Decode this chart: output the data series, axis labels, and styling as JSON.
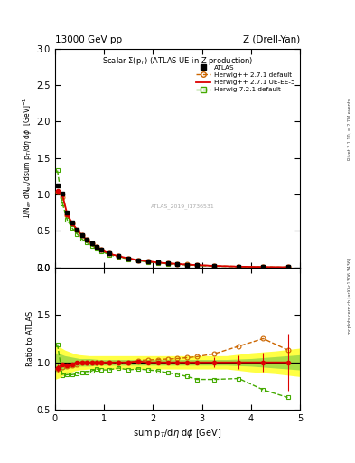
{
  "title_left": "13000 GeV pp",
  "title_right": "Z (Drell-Yan)",
  "panel_title": "Scalar $\\Sigma$(p$_T$) (ATLAS UE in Z production)",
  "ylabel_main": "1/N$_{ev}$ dN$_{ev}$/dsum p$_T$/d$\\eta$ d$\\phi$  [GeV]$^{-1}$",
  "ylabel_ratio": "Ratio to ATLAS",
  "xlabel": "sum p$_T$/d$\\eta$ d$\\phi$ [GeV]",
  "watermark": "ATLAS_2019_I1736531",
  "side_text_top": "Rivet 3.1.10, ≥ 2.7M events",
  "side_text_bot": "mcplots.cern.ch [arXiv:1306.3436]",
  "atlas_data_x": [
    0.05,
    0.15,
    0.25,
    0.35,
    0.45,
    0.55,
    0.65,
    0.75,
    0.85,
    0.95,
    1.1,
    1.3,
    1.5,
    1.7,
    1.9,
    2.1,
    2.3,
    2.5,
    2.7,
    2.9,
    3.25,
    3.75,
    4.25,
    4.75
  ],
  "atlas_data_y": [
    1.12,
    1.02,
    0.75,
    0.62,
    0.52,
    0.44,
    0.38,
    0.33,
    0.28,
    0.24,
    0.19,
    0.155,
    0.125,
    0.1,
    0.083,
    0.068,
    0.057,
    0.048,
    0.04,
    0.033,
    0.022,
    0.012,
    0.007,
    0.004
  ],
  "atlas_data_yerr": [
    0.02,
    0.015,
    0.01,
    0.008,
    0.007,
    0.006,
    0.005,
    0.004,
    0.004,
    0.003,
    0.003,
    0.002,
    0.002,
    0.002,
    0.0015,
    0.001,
    0.001,
    0.001,
    0.0008,
    0.0007,
    0.0005,
    0.0003,
    0.0002,
    0.0001
  ],
  "herwig_default_x": [
    0.05,
    0.15,
    0.25,
    0.35,
    0.45,
    0.55,
    0.65,
    0.75,
    0.85,
    0.95,
    1.1,
    1.3,
    1.5,
    1.7,
    1.9,
    2.1,
    2.3,
    2.5,
    2.7,
    2.9,
    3.25,
    3.75,
    4.25,
    4.75
  ],
  "herwig_default_y": [
    1.04,
    0.97,
    0.72,
    0.6,
    0.51,
    0.44,
    0.38,
    0.33,
    0.28,
    0.24,
    0.19,
    0.155,
    0.125,
    0.102,
    0.085,
    0.07,
    0.059,
    0.05,
    0.042,
    0.035,
    0.024,
    0.014,
    0.008,
    0.0045
  ],
  "herwig_ueee5_x": [
    0.05,
    0.15,
    0.25,
    0.35,
    0.45,
    0.55,
    0.65,
    0.75,
    0.85,
    0.95,
    1.1,
    1.3,
    1.5,
    1.7,
    1.9,
    2.1,
    2.3,
    2.5,
    2.7,
    2.9,
    3.25,
    3.75,
    4.25,
    4.75
  ],
  "herwig_ueee5_y": [
    1.05,
    1.0,
    0.73,
    0.61,
    0.52,
    0.44,
    0.38,
    0.33,
    0.28,
    0.24,
    0.19,
    0.155,
    0.125,
    0.101,
    0.083,
    0.068,
    0.057,
    0.048,
    0.04,
    0.033,
    0.022,
    0.012,
    0.007,
    0.004
  ],
  "herwig721_x": [
    0.05,
    0.15,
    0.25,
    0.35,
    0.45,
    0.55,
    0.65,
    0.75,
    0.85,
    0.95,
    1.1,
    1.3,
    1.5,
    1.7,
    1.9,
    2.1,
    2.3,
    2.5,
    2.7,
    2.9,
    3.25,
    3.75,
    4.25,
    4.75
  ],
  "herwig721_y": [
    1.33,
    0.88,
    0.65,
    0.54,
    0.46,
    0.39,
    0.34,
    0.3,
    0.26,
    0.22,
    0.175,
    0.145,
    0.115,
    0.093,
    0.076,
    0.062,
    0.051,
    0.042,
    0.034,
    0.027,
    0.018,
    0.01,
    0.005,
    0.0025
  ],
  "ratio_herwig_default_y": [
    0.93,
    0.95,
    0.96,
    0.97,
    0.98,
    1.0,
    1.0,
    1.0,
    1.0,
    1.0,
    1.0,
    1.0,
    1.0,
    1.02,
    1.025,
    1.03,
    1.035,
    1.04,
    1.05,
    1.06,
    1.09,
    1.17,
    1.25,
    1.13
  ],
  "ratio_herwig_ueee5_y": [
    0.94,
    0.98,
    0.97,
    0.98,
    1.0,
    1.0,
    1.0,
    1.0,
    1.0,
    1.0,
    1.0,
    1.0,
    1.0,
    1.01,
    1.0,
    1.0,
    1.0,
    1.0,
    1.0,
    1.0,
    1.0,
    1.0,
    1.0,
    1.0
  ],
  "ratio_ueee5_yerr": [
    0.04,
    0.02,
    0.02,
    0.02,
    0.02,
    0.02,
    0.02,
    0.02,
    0.02,
    0.02,
    0.02,
    0.02,
    0.02,
    0.02,
    0.02,
    0.02,
    0.02,
    0.02,
    0.02,
    0.02,
    0.05,
    0.07,
    0.1,
    0.3
  ],
  "ratio_herwig721_y": [
    1.19,
    0.86,
    0.87,
    0.87,
    0.88,
    0.89,
    0.89,
    0.91,
    0.93,
    0.92,
    0.92,
    0.94,
    0.92,
    0.93,
    0.92,
    0.91,
    0.89,
    0.875,
    0.85,
    0.82,
    0.82,
    0.83,
    0.71,
    0.63
  ],
  "band_x": [
    0.0,
    0.1,
    0.2,
    0.3,
    0.4,
    0.5,
    0.7,
    0.9,
    1.1,
    1.5,
    2.0,
    2.5,
    3.0,
    3.5,
    4.0,
    4.5,
    5.0
  ],
  "band_yellow_low": [
    0.82,
    0.84,
    0.87,
    0.89,
    0.91,
    0.92,
    0.93,
    0.93,
    0.93,
    0.93,
    0.93,
    0.93,
    0.93,
    0.93,
    0.9,
    0.88,
    0.85
  ],
  "band_yellow_high": [
    1.18,
    1.16,
    1.13,
    1.11,
    1.09,
    1.08,
    1.07,
    1.07,
    1.07,
    1.07,
    1.07,
    1.07,
    1.07,
    1.07,
    1.1,
    1.12,
    1.15
  ],
  "band_green_low": [
    0.9,
    0.91,
    0.93,
    0.94,
    0.95,
    0.96,
    0.96,
    0.97,
    0.97,
    0.97,
    0.97,
    0.97,
    0.97,
    0.97,
    0.96,
    0.94,
    0.92
  ],
  "band_green_high": [
    1.1,
    1.09,
    1.07,
    1.06,
    1.05,
    1.04,
    1.04,
    1.03,
    1.03,
    1.03,
    1.03,
    1.03,
    1.03,
    1.03,
    1.04,
    1.06,
    1.08
  ],
  "xlim": [
    0,
    5.0
  ],
  "ylim_main": [
    0,
    3.0
  ],
  "ylim_ratio": [
    0.5,
    2.0
  ],
  "color_atlas": "#000000",
  "color_herwig_default": "#cc6600",
  "color_herwig_ueee5": "#dd0000",
  "color_herwig721": "#44aa00",
  "color_band_yellow": "#ffff44",
  "color_band_green": "#aadd44"
}
